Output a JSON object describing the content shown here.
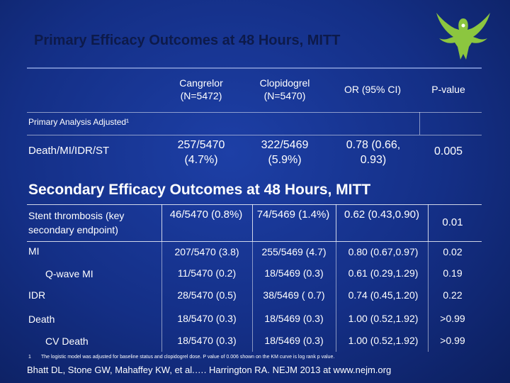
{
  "title": "Primary Efficacy Outcomes at 48 Hours, MITT",
  "headers": {
    "cangrelor": "Cangrelor (N=5472)",
    "clopidogrel": "Clopidogrel (N=5470)",
    "or": "OR (95% CI)",
    "p": "P-value"
  },
  "primary": {
    "section_label": "Primary Analysis Adjusted¹",
    "row_label": "Death/MI/IDR/ST",
    "cangrelor": "257/5470 (4.7%)",
    "clopidogrel": "322/5469 (5.9%)",
    "or": "0.78 (0.66, 0.93)",
    "p": "0.005"
  },
  "secondary_title": "Secondary Efficacy Outcomes at 48 Hours, MITT",
  "stent": {
    "label": "Stent thrombosis (key secondary endpoint)",
    "cangrelor": "46/5470 (0.8%)",
    "clopidogrel": "74/5469 (1.4%)",
    "or": "0.62 (0.43,0.90)",
    "p": "0.01"
  },
  "rows": [
    {
      "label": "MI",
      "cangrelor": "207/5470 (3.8)",
      "clopidogrel": "255/5469 (4.7)",
      "or": "0.80 (0.67,0.97)",
      "p": "0.02"
    },
    {
      "label": "Q-wave MI",
      "cangrelor": "11/5470 (0.2)",
      "clopidogrel": "18/5469 (0.3)",
      "or": "0.61 (0.29,1.29)",
      "p": "0.19"
    },
    {
      "label": "IDR",
      "cangrelor": "28/5470 (0.5)",
      "clopidogrel": "38/5469 ( 0.7)",
      "or": "0.74 (0.45,1.20)",
      "p": "0.22"
    },
    {
      "label": "Death",
      "cangrelor": "18/5470 (0.3)",
      "clopidogrel": "18/5469 (0.3)",
      "or": "1.00 (0.52,1.92)",
      "p": ">0.99"
    },
    {
      "label": "CV Death",
      "cangrelor": "18/5470 (0.3)",
      "clopidogrel": "18/5469 (0.3)",
      "or": "1.00 (0.52,1.92)",
      "p": ">0.99"
    }
  ],
  "footnote_mark": "1",
  "footnote": "The logistic model was adjusted for baseline status and clopidogrel dose. P value of 0.006 shown on the KM curve is log rank p value.",
  "citation": "Bhatt DL, Stone GW, Mahaffey KW, et al.…. Harrington RA. NEJM 2013 at www.nejm.org",
  "colors": {
    "title": "#0d1a4a",
    "logo": "#8cc63f",
    "background": "#142f86"
  }
}
